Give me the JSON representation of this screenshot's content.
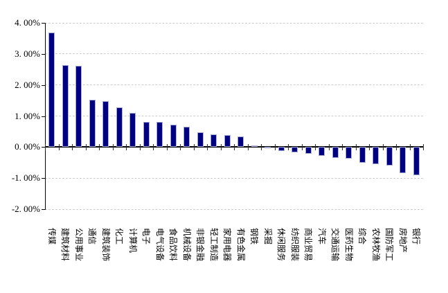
{
  "chart_data": {
    "type": "bar",
    "title": "",
    "xlabel": "",
    "ylabel": "",
    "legend": "none",
    "grid": "horizontal-dashed",
    "ylim": [
      -2.0,
      4.0
    ],
    "y_ticks": [
      {
        "value": 4,
        "label": "4. 00%"
      },
      {
        "value": 3,
        "label": "3. 00%"
      },
      {
        "value": 2,
        "label": "2. 00%"
      },
      {
        "value": 1,
        "label": "1. 00%"
      },
      {
        "value": 0,
        "label": "0. 00%"
      },
      {
        "value": -1,
        "label": "-1. 00%"
      },
      {
        "value": -2,
        "label": "-2. 00%"
      }
    ],
    "categories": [
      "传媒",
      "建筑材料",
      "公用事业",
      "通信",
      "建筑装饰",
      "化工",
      "计算机",
      "电子",
      "电气设备",
      "食品饮料",
      "机械设备",
      "非银金融",
      "轻工制造",
      "家用电器",
      "有色金属",
      "钢铁",
      "采掘",
      "休闲服务",
      "纺织服装",
      "商业贸易",
      "汽车",
      "交通运输",
      "医药生物",
      "综合",
      "农林牧渔",
      "国防军工",
      "房地产",
      "银行"
    ],
    "values": [
      3.69,
      2.65,
      2.61,
      1.53,
      1.47,
      1.28,
      1.1,
      0.82,
      0.8,
      0.73,
      0.66,
      0.47,
      0.4,
      0.39,
      0.34,
      0.06,
      -0.02,
      -0.13,
      -0.16,
      -0.21,
      -0.29,
      -0.35,
      -0.38,
      -0.51,
      -0.55,
      -0.6,
      -0.83,
      -0.91
    ],
    "unit": "%",
    "colors": {
      "bar_fill": "#000080",
      "bar_border": "#a6a8d6",
      "gridline": "#cccccc",
      "axis": "#000000",
      "background": "#ffffff",
      "tick_label": "#000000"
    }
  }
}
